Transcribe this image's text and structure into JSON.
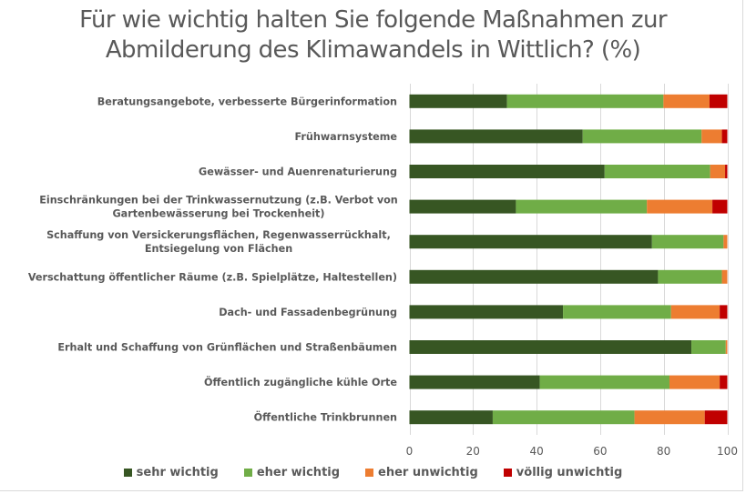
{
  "chart_data": {
    "type": "bar",
    "orientation": "horizontal",
    "stacked": true,
    "title": "Für wie wichtig halten Sie folgende Maßnahmen zur Abmilderung des Klimawandels in Wittlich? (%)",
    "title_lines": [
      "Für wie wichtig halten Sie folgende Maßnahmen zur",
      "Abmilderung des Klimawandels in Wittlich? (%)"
    ],
    "xlabel": "",
    "ylabel": "",
    "xlim": [
      0,
      100
    ],
    "xticks": [
      "0",
      "20",
      "40",
      "60",
      "80",
      "100"
    ],
    "grid": true,
    "legend_position": "bottom",
    "categories": [
      [
        "Beratungsangebote, verbesserte Bürgerinformation"
      ],
      [
        "Frühwarnsysteme"
      ],
      [
        "Gewässer- und Auenrenaturierung"
      ],
      [
        "Einschränkungen bei der Trinkwassernutzung (z.B. Verbot von",
        "Gartenbewässerung bei Trockenheit)"
      ],
      [
        "Schaffung von Versickerungsflächen, Regenwasserrückhalt,",
        "Entsiegelung von Flächen"
      ],
      [
        "Verschattung öffentlicher Räume (z.B. Spielplätze, Haltestellen)"
      ],
      [
        "Dach- und Fassadenbegrünung"
      ],
      [
        "Erhalt und Schaffung von Grünflächen und Straßenbäumen"
      ],
      [
        "Öffentlich zugängliche kühle Orte"
      ],
      [
        "Öffentliche Trinkbrunnen"
      ]
    ],
    "series": [
      {
        "name": "sehr wichtig",
        "color": "#375623",
        "values": [
          30.7,
          54.5,
          61.4,
          33.5,
          76.3,
          78.2,
          48.3,
          88.7,
          41.0,
          26.2
        ]
      },
      {
        "name": "eher wichtig",
        "color": "#70AD47",
        "values": [
          49.2,
          37.4,
          33.2,
          41.2,
          22.5,
          20.1,
          34.0,
          10.8,
          40.8,
          44.6
        ]
      },
      {
        "name": "eher unwichtig",
        "color": "#ED7D31",
        "values": [
          14.5,
          6.4,
          4.7,
          20.6,
          1.2,
          1.7,
          15.3,
          0.5,
          15.8,
          22.1
        ]
      },
      {
        "name": "völlig unwichtig",
        "color": "#C00000",
        "values": [
          5.6,
          1.7,
          0.7,
          4.7,
          0.0,
          0.0,
          2.4,
          0.0,
          2.4,
          7.1
        ]
      }
    ]
  }
}
